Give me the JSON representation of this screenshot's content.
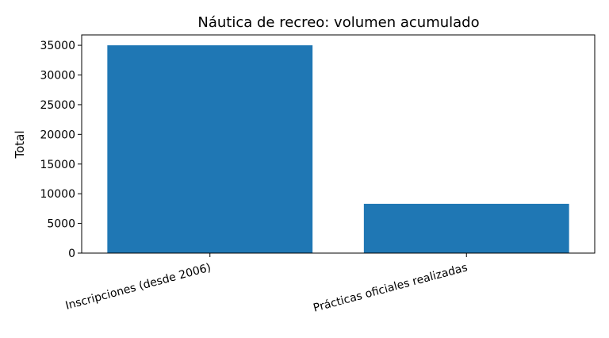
{
  "chart_data": {
    "type": "bar",
    "title": "Náutica de recreo: volumen acumulado",
    "ylabel": "Total",
    "categories": [
      "Inscripciones (desde 2006)",
      "Prácticas oficiales realizadas"
    ],
    "values": [
      35000,
      8300
    ],
    "color": "#1f77b4",
    "ylim": [
      0,
      36750
    ],
    "yticks": [
      0,
      5000,
      10000,
      15000,
      20000,
      25000,
      30000,
      35000
    ]
  }
}
